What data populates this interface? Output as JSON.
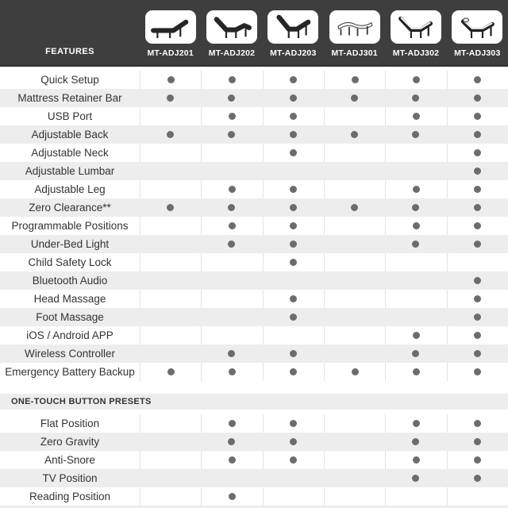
{
  "header": {
    "features_label": "FEATURES",
    "products": [
      "MT-ADJ201",
      "MT-ADJ202",
      "MT-ADJ203",
      "MT-ADJ301",
      "MT-ADJ302",
      "MT-ADJ303"
    ]
  },
  "chart_data": {
    "type": "table",
    "title": "Adjustable bed base feature comparison",
    "columns": [
      "MT-ADJ201",
      "MT-ADJ202",
      "MT-ADJ203",
      "MT-ADJ301",
      "MT-ADJ302",
      "MT-ADJ303"
    ],
    "feature_rows": [
      {
        "label": "Quick Setup",
        "availability": [
          true,
          true,
          true,
          true,
          true,
          true
        ]
      },
      {
        "label": "Mattress Retainer Bar",
        "availability": [
          true,
          true,
          true,
          true,
          true,
          true
        ]
      },
      {
        "label": "USB Port",
        "availability": [
          false,
          true,
          true,
          false,
          true,
          true
        ]
      },
      {
        "label": "Adjustable Back",
        "availability": [
          true,
          true,
          true,
          true,
          true,
          true
        ]
      },
      {
        "label": "Adjustable Neck",
        "availability": [
          false,
          false,
          true,
          false,
          false,
          true
        ]
      },
      {
        "label": "Adjustable Lumbar",
        "availability": [
          false,
          false,
          false,
          false,
          false,
          true
        ]
      },
      {
        "label": "Adjustable Leg",
        "availability": [
          false,
          true,
          true,
          false,
          true,
          true
        ]
      },
      {
        "label": "Zero Clearance**",
        "availability": [
          true,
          true,
          true,
          true,
          true,
          true
        ]
      },
      {
        "label": "Programmable Positions",
        "availability": [
          false,
          true,
          true,
          false,
          true,
          true
        ]
      },
      {
        "label": "Under-Bed Light",
        "availability": [
          false,
          true,
          true,
          false,
          true,
          true
        ]
      },
      {
        "label": "Child Safety Lock",
        "availability": [
          false,
          false,
          true,
          false,
          false,
          false
        ]
      },
      {
        "label": "Bluetooth Audio",
        "availability": [
          false,
          false,
          false,
          false,
          false,
          true
        ]
      },
      {
        "label": "Head Massage",
        "availability": [
          false,
          false,
          true,
          false,
          false,
          true
        ]
      },
      {
        "label": "Foot Massage",
        "availability": [
          false,
          false,
          true,
          false,
          false,
          true
        ]
      },
      {
        "label": "iOS / Android APP",
        "availability": [
          false,
          false,
          false,
          false,
          true,
          true
        ]
      },
      {
        "label": "Wireless Controller",
        "availability": [
          false,
          true,
          true,
          false,
          true,
          true
        ]
      },
      {
        "label": "Emergency Battery Backup",
        "availability": [
          true,
          true,
          true,
          true,
          true,
          true
        ]
      }
    ],
    "section_label": "ONE-TOUCH BUTTON PRESETS",
    "preset_rows": [
      {
        "label": "Flat Position",
        "availability": [
          false,
          true,
          true,
          false,
          true,
          true
        ]
      },
      {
        "label": "Zero Gravity",
        "availability": [
          false,
          true,
          true,
          false,
          true,
          true
        ]
      },
      {
        "label": "Anti-Snore",
        "availability": [
          false,
          true,
          true,
          false,
          true,
          true
        ]
      },
      {
        "label": "TV Position",
        "availability": [
          false,
          false,
          false,
          false,
          true,
          true
        ]
      },
      {
        "label": "Reading Position",
        "availability": [
          false,
          true,
          false,
          false,
          false,
          false
        ]
      }
    ]
  },
  "colors": {
    "header_bg": "#3E3E3E",
    "alt_row_bg": "#EDEDED",
    "separator": "#E3E3E3",
    "dot": "#6C6C6C",
    "label_text": "#333333",
    "header_text": "#FFFFFF"
  }
}
